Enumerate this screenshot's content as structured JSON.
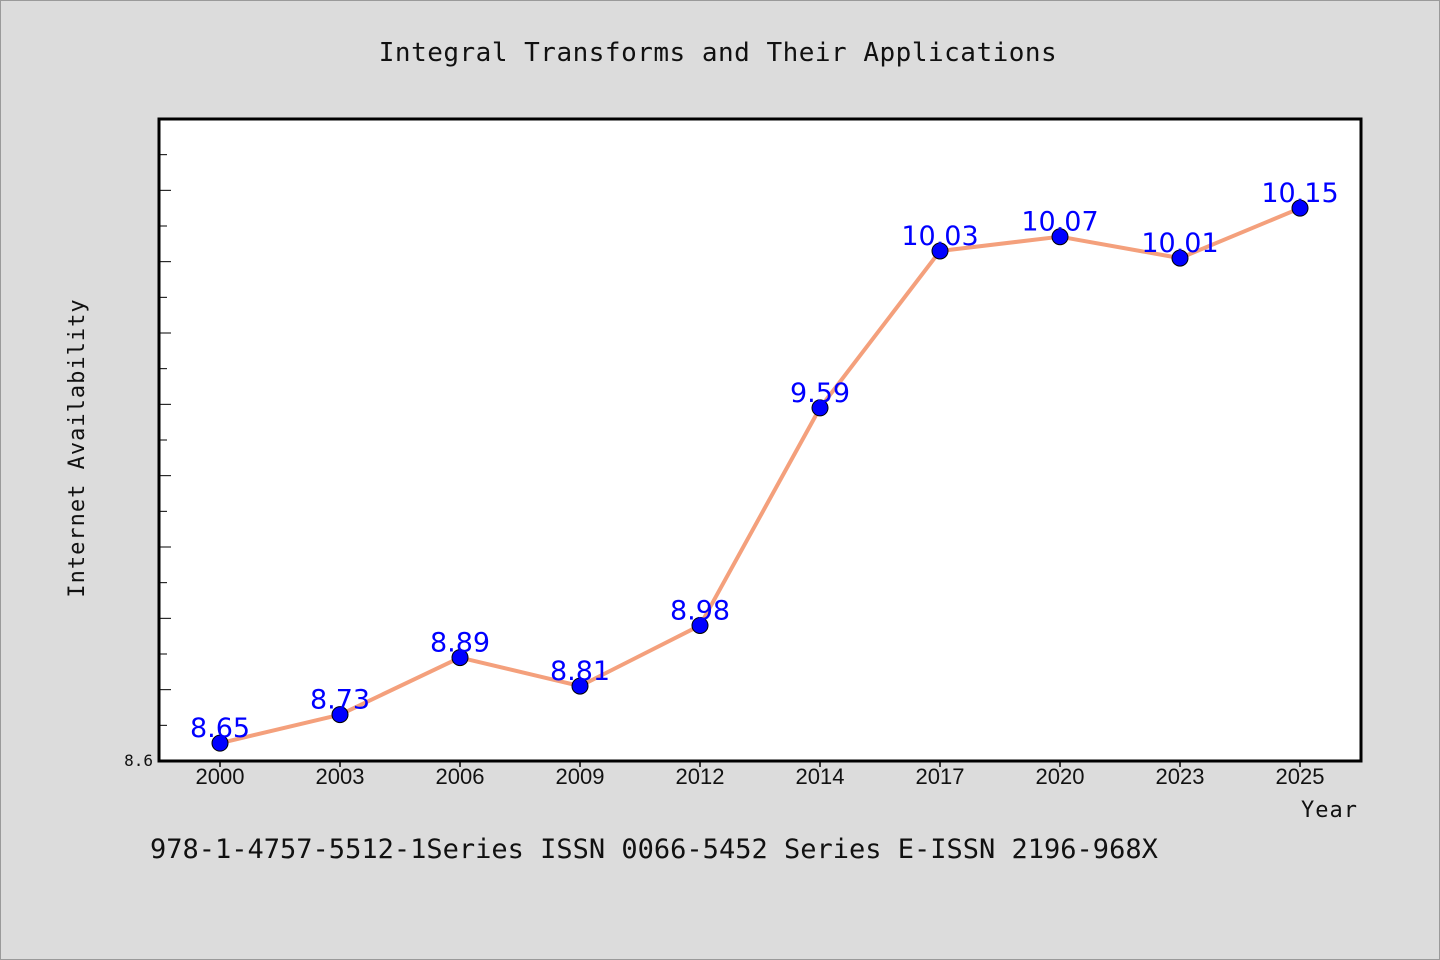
{
  "chart_data": {
    "type": "line",
    "title": "Integral Transforms and Their Applications",
    "xlabel": "Year",
    "ylabel": "Internet Availability",
    "categories": [
      "2000",
      "2003",
      "2006",
      "2009",
      "2012",
      "2014",
      "2017",
      "2020",
      "2023",
      "2025"
    ],
    "series": [
      {
        "values": [
          8.65,
          8.73,
          8.89,
          8.81,
          8.98,
          9.59,
          10.03,
          10.07,
          10.01,
          10.15
        ],
        "labels": [
          "8.65",
          "8.73",
          "8.89",
          "8.81",
          "8.98",
          "9.59",
          "10.03",
          "10.07",
          "10.01",
          "10.15"
        ],
        "line_color": "#f4a07c",
        "marker_color": "#0000ff"
      }
    ],
    "ylim": [
      8.6,
      10.4
    ],
    "y_tick_labels": [
      "8.6"
    ],
    "grid": false,
    "legend": "none"
  },
  "footer": {
    "text": "978-1-4757-5512-1Series ISSN 0066-5452 Series E-ISSN 2196-968X"
  },
  "colors": {
    "background": "#dcdcdc",
    "plot_area": "#ffffff",
    "data_label": "#0000ff"
  }
}
